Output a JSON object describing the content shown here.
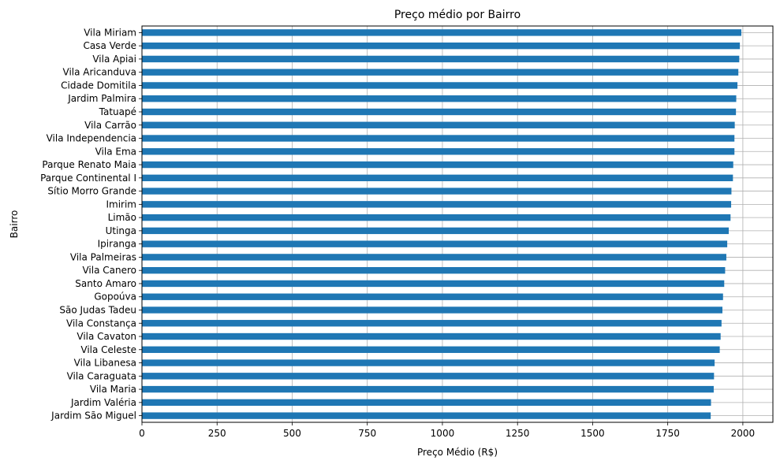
{
  "chart_data": {
    "type": "bar",
    "orientation": "horizontal",
    "title": "Preço médio por Bairro",
    "xlabel": "Preço Médio (R$)",
    "ylabel": "Bairro",
    "xlim": [
      0,
      2100
    ],
    "xticks": [
      0,
      250,
      500,
      750,
      1000,
      1250,
      1500,
      1750,
      2000
    ],
    "xtick_labels": [
      "0",
      "250",
      "500",
      "750",
      "1000",
      "1250",
      "1500",
      "1750",
      "2000"
    ],
    "grid": true,
    "bar_color": "#1f77b4",
    "grid_color": "#b0b0b0",
    "categories": [
      "Vila Miriam",
      "Casa Verde",
      "Vila Apiai",
      "Vila Aricanduva",
      "Cidade Domitila",
      "Jardim Palmira",
      "Tatuapé",
      "Vila Carrão",
      "Vila Independencia",
      "Vila Ema",
      "Parque Renato Maia",
      "Parque Continental I",
      "Sítio Morro Grande",
      "Imirim",
      "Limão",
      "Utinga",
      "Ipiranga",
      "Vila Palmeiras",
      "Vila Canero",
      "Santo Amaro",
      "Gopoúva",
      "São Judas Tadeu",
      "Vila Constança",
      "Vila Cavaton",
      "Vila Celeste",
      "Vila Libanesa",
      "Vila Caraguata",
      "Vila Maria",
      "Jardim Valéria",
      "Jardim São Miguel"
    ],
    "values": [
      1995,
      1990,
      1988,
      1985,
      1982,
      1978,
      1977,
      1973,
      1972,
      1972,
      1968,
      1967,
      1962,
      1961,
      1959,
      1953,
      1948,
      1945,
      1941,
      1938,
      1934,
      1932,
      1929,
      1926,
      1923,
      1906,
      1904,
      1903,
      1894,
      1893
    ]
  }
}
